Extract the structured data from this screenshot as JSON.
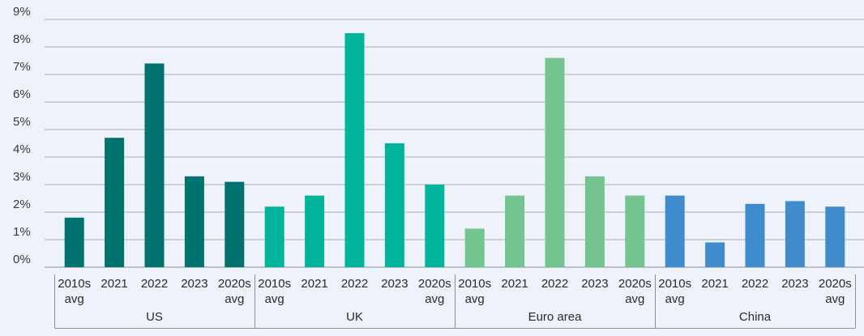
{
  "chart_data": {
    "type": "bar",
    "title": "",
    "xlabel": "",
    "ylabel": "",
    "ylim": [
      0,
      9
    ],
    "y_ticks": [
      "0%",
      "1%",
      "2%",
      "3%",
      "4%",
      "5%",
      "6%",
      "7%",
      "8%",
      "9%"
    ],
    "grid": true,
    "groups": [
      {
        "name": "US",
        "color": "#00736f",
        "categories": [
          [
            "2010s",
            "avg"
          ],
          [
            "2021"
          ],
          [
            "2022"
          ],
          [
            "2023"
          ],
          [
            "2020s",
            "avg"
          ]
        ],
        "values": [
          1.8,
          4.7,
          7.4,
          3.3,
          3.1
        ]
      },
      {
        "name": "UK",
        "color": "#00b49b",
        "categories": [
          [
            "2010s",
            "avg"
          ],
          [
            "2021"
          ],
          [
            "2022"
          ],
          [
            "2023"
          ],
          [
            "2020s",
            "avg"
          ]
        ],
        "values": [
          2.2,
          2.6,
          8.5,
          4.5,
          3.0
        ]
      },
      {
        "name": "Euro area",
        "color": "#74c48f",
        "categories": [
          [
            "2010s",
            "avg"
          ],
          [
            "2021"
          ],
          [
            "2022"
          ],
          [
            "2023"
          ],
          [
            "2020s",
            "avg"
          ]
        ],
        "values": [
          1.4,
          2.6,
          7.6,
          3.3,
          2.6
        ]
      },
      {
        "name": "China",
        "color": "#3f8bcc",
        "categories": [
          [
            "2010s",
            "avg"
          ],
          [
            "2021"
          ],
          [
            "2022"
          ],
          [
            "2023"
          ],
          [
            "2020s",
            "avg"
          ]
        ],
        "values": [
          2.6,
          0.9,
          2.3,
          2.4,
          2.2
        ]
      }
    ]
  }
}
